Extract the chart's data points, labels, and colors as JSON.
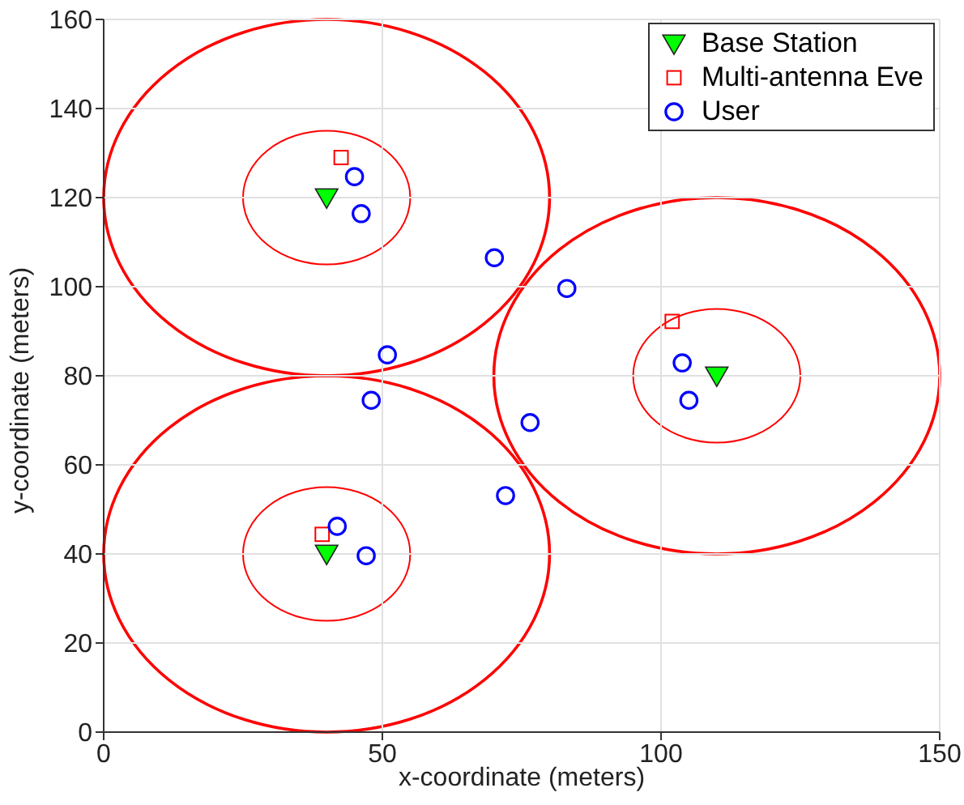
{
  "chart_data": {
    "type": "scatter",
    "xlabel": "x-coordinate (meters)",
    "ylabel": "y-coordinate (meters)",
    "xlim": [
      0,
      150
    ],
    "xticks": [
      0,
      50,
      100,
      150
    ],
    "ylim": [
      0,
      160
    ],
    "yticks": [
      0,
      20,
      40,
      60,
      80,
      100,
      120,
      140,
      160
    ],
    "grid": true,
    "legend": "top right",
    "series": [
      {
        "name": "Base Station",
        "marker": "triangle",
        "color": "#00ff00",
        "x": [
          40,
          40,
          110
        ],
        "values": [
          120,
          40,
          80
        ]
      },
      {
        "name": "Multi-antenna Eve",
        "marker": "square",
        "color": "#ff0000",
        "x": [
          42.6,
          39.2,
          102
        ],
        "values": [
          129,
          44.4,
          92.2
        ]
      },
      {
        "name": "User",
        "marker": "circle",
        "color": "#0000ff",
        "x": [
          45,
          46.2,
          70.1,
          83.1,
          50.9,
          48,
          76.5,
          72.1,
          41.9,
          47.1,
          103.8,
          105
        ],
        "values": [
          124.7,
          116.4,
          106.5,
          99.6,
          84.7,
          74.5,
          69.5,
          53.1,
          46.2,
          39.6,
          82.9,
          74.5
        ]
      }
    ]
  }
}
